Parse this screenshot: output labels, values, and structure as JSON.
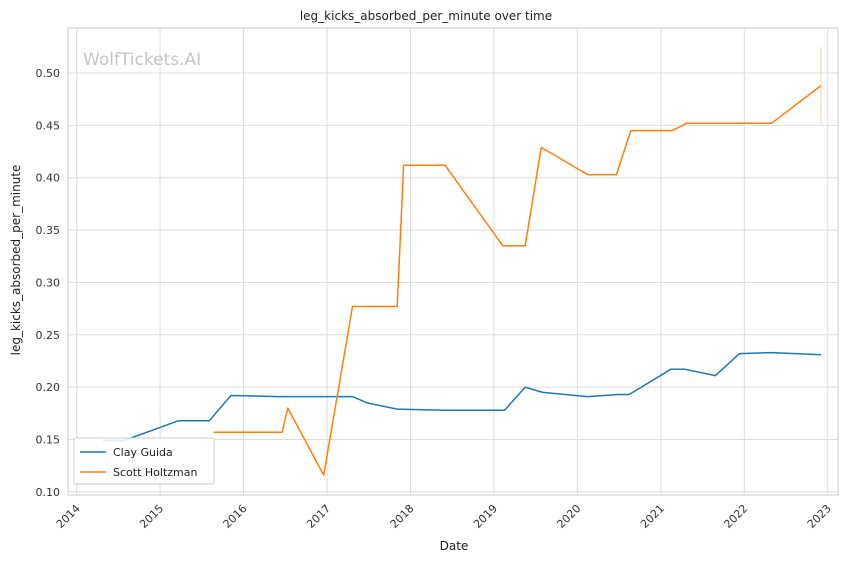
{
  "chart_data": {
    "type": "line",
    "title": "leg_kicks_absorbed_per_minute over time",
    "xlabel": "Date",
    "ylabel": "leg_kicks_absorbed_per_minute",
    "watermark": "WolfTickets.AI",
    "x_ticks": [
      "2014",
      "2015",
      "2016",
      "2017",
      "2018",
      "2019",
      "2020",
      "2021",
      "2022",
      "2023"
    ],
    "y_ticks": [
      "0.10",
      "0.15",
      "0.20",
      "0.25",
      "0.30",
      "0.35",
      "0.40",
      "0.45",
      "0.50"
    ],
    "xlim": [
      "2013-11-24",
      "2023-02-15"
    ],
    "ylim": [
      0.097,
      0.543
    ],
    "grid": true,
    "legend_position": "lower-left",
    "series": [
      {
        "name": "Clay Guida",
        "color": "#1f77b4",
        "points": [
          [
            "2014-04-26",
            0.149
          ],
          [
            "2014-07-26",
            0.149
          ],
          [
            "2015-03-23",
            0.168
          ],
          [
            "2015-08-05",
            0.168
          ],
          [
            "2015-11-07",
            0.192
          ],
          [
            "2016-06-04",
            0.191
          ],
          [
            "2017-02-11",
            0.191
          ],
          [
            "2017-04-22",
            0.191
          ],
          [
            "2017-06-25",
            0.185
          ],
          [
            "2017-11-04",
            0.179
          ],
          [
            "2018-06-01",
            0.178
          ],
          [
            "2019-02-17",
            0.178
          ],
          [
            "2019-05-18",
            0.2
          ],
          [
            "2019-08-03",
            0.195
          ],
          [
            "2020-02-15",
            0.191
          ],
          [
            "2020-06-27",
            0.193
          ],
          [
            "2020-08-15",
            0.193
          ],
          [
            "2021-02-13",
            0.217
          ],
          [
            "2021-04-17",
            0.217
          ],
          [
            "2021-08-28",
            0.211
          ],
          [
            "2021-12-11",
            0.232
          ],
          [
            "2022-04-30",
            0.233
          ],
          [
            "2022-12-03",
            0.231
          ]
        ]
      },
      {
        "name": "Scott Holtzman",
        "color": "#ff7f0e",
        "points": [
          [
            "2015-08-23",
            0.157
          ],
          [
            "2016-06-18",
            0.157
          ],
          [
            "2016-07-13",
            0.18
          ],
          [
            "2016-12-17",
            0.116
          ],
          [
            "2017-04-22",
            0.277
          ],
          [
            "2017-11-04",
            0.277
          ],
          [
            "2017-12-02",
            0.412
          ],
          [
            "2018-06-01",
            0.412
          ],
          [
            "2019-02-09",
            0.335
          ],
          [
            "2019-05-18",
            0.335
          ],
          [
            "2019-07-27",
            0.429
          ],
          [
            "2020-02-15",
            0.403
          ],
          [
            "2020-06-20",
            0.403
          ],
          [
            "2020-08-22",
            0.445
          ],
          [
            "2021-02-20",
            0.445
          ],
          [
            "2021-04-24",
            0.452
          ],
          [
            "2022-04-30",
            0.452
          ],
          [
            "2022-12-03",
            0.488
          ]
        ]
      }
    ],
    "error_band": {
      "series": "Scott Holtzman",
      "date": "2022-12-03",
      "low": 0.451,
      "high": 0.525
    }
  }
}
